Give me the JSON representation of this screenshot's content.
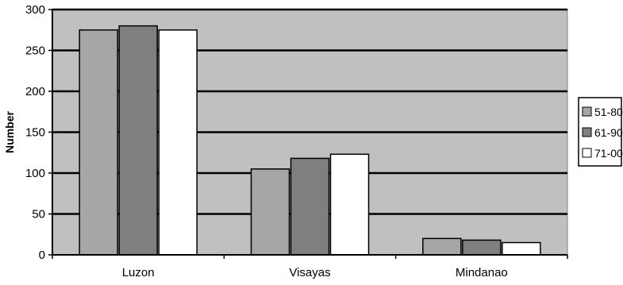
{
  "chart_data": {
    "type": "bar",
    "title": "",
    "xlabel": "",
    "ylabel": "Number",
    "categories": [
      "Luzon",
      "Visayas",
      "Mindanao"
    ],
    "series": [
      {
        "name": "51-80",
        "values": [
          275,
          105,
          20
        ],
        "color": "#a6a6a6"
      },
      {
        "name": "61-90",
        "values": [
          280,
          118,
          18
        ],
        "color": "#7f7f7f"
      },
      {
        "name": "71-00",
        "values": [
          275,
          123,
          15
        ],
        "color": "#ffffff"
      }
    ],
    "ylim": [
      0,
      300
    ],
    "yticks": [
      0,
      50,
      100,
      150,
      200,
      250,
      300
    ],
    "grid": true,
    "legend_position": "right",
    "plot_background": "#c0c0c0"
  }
}
